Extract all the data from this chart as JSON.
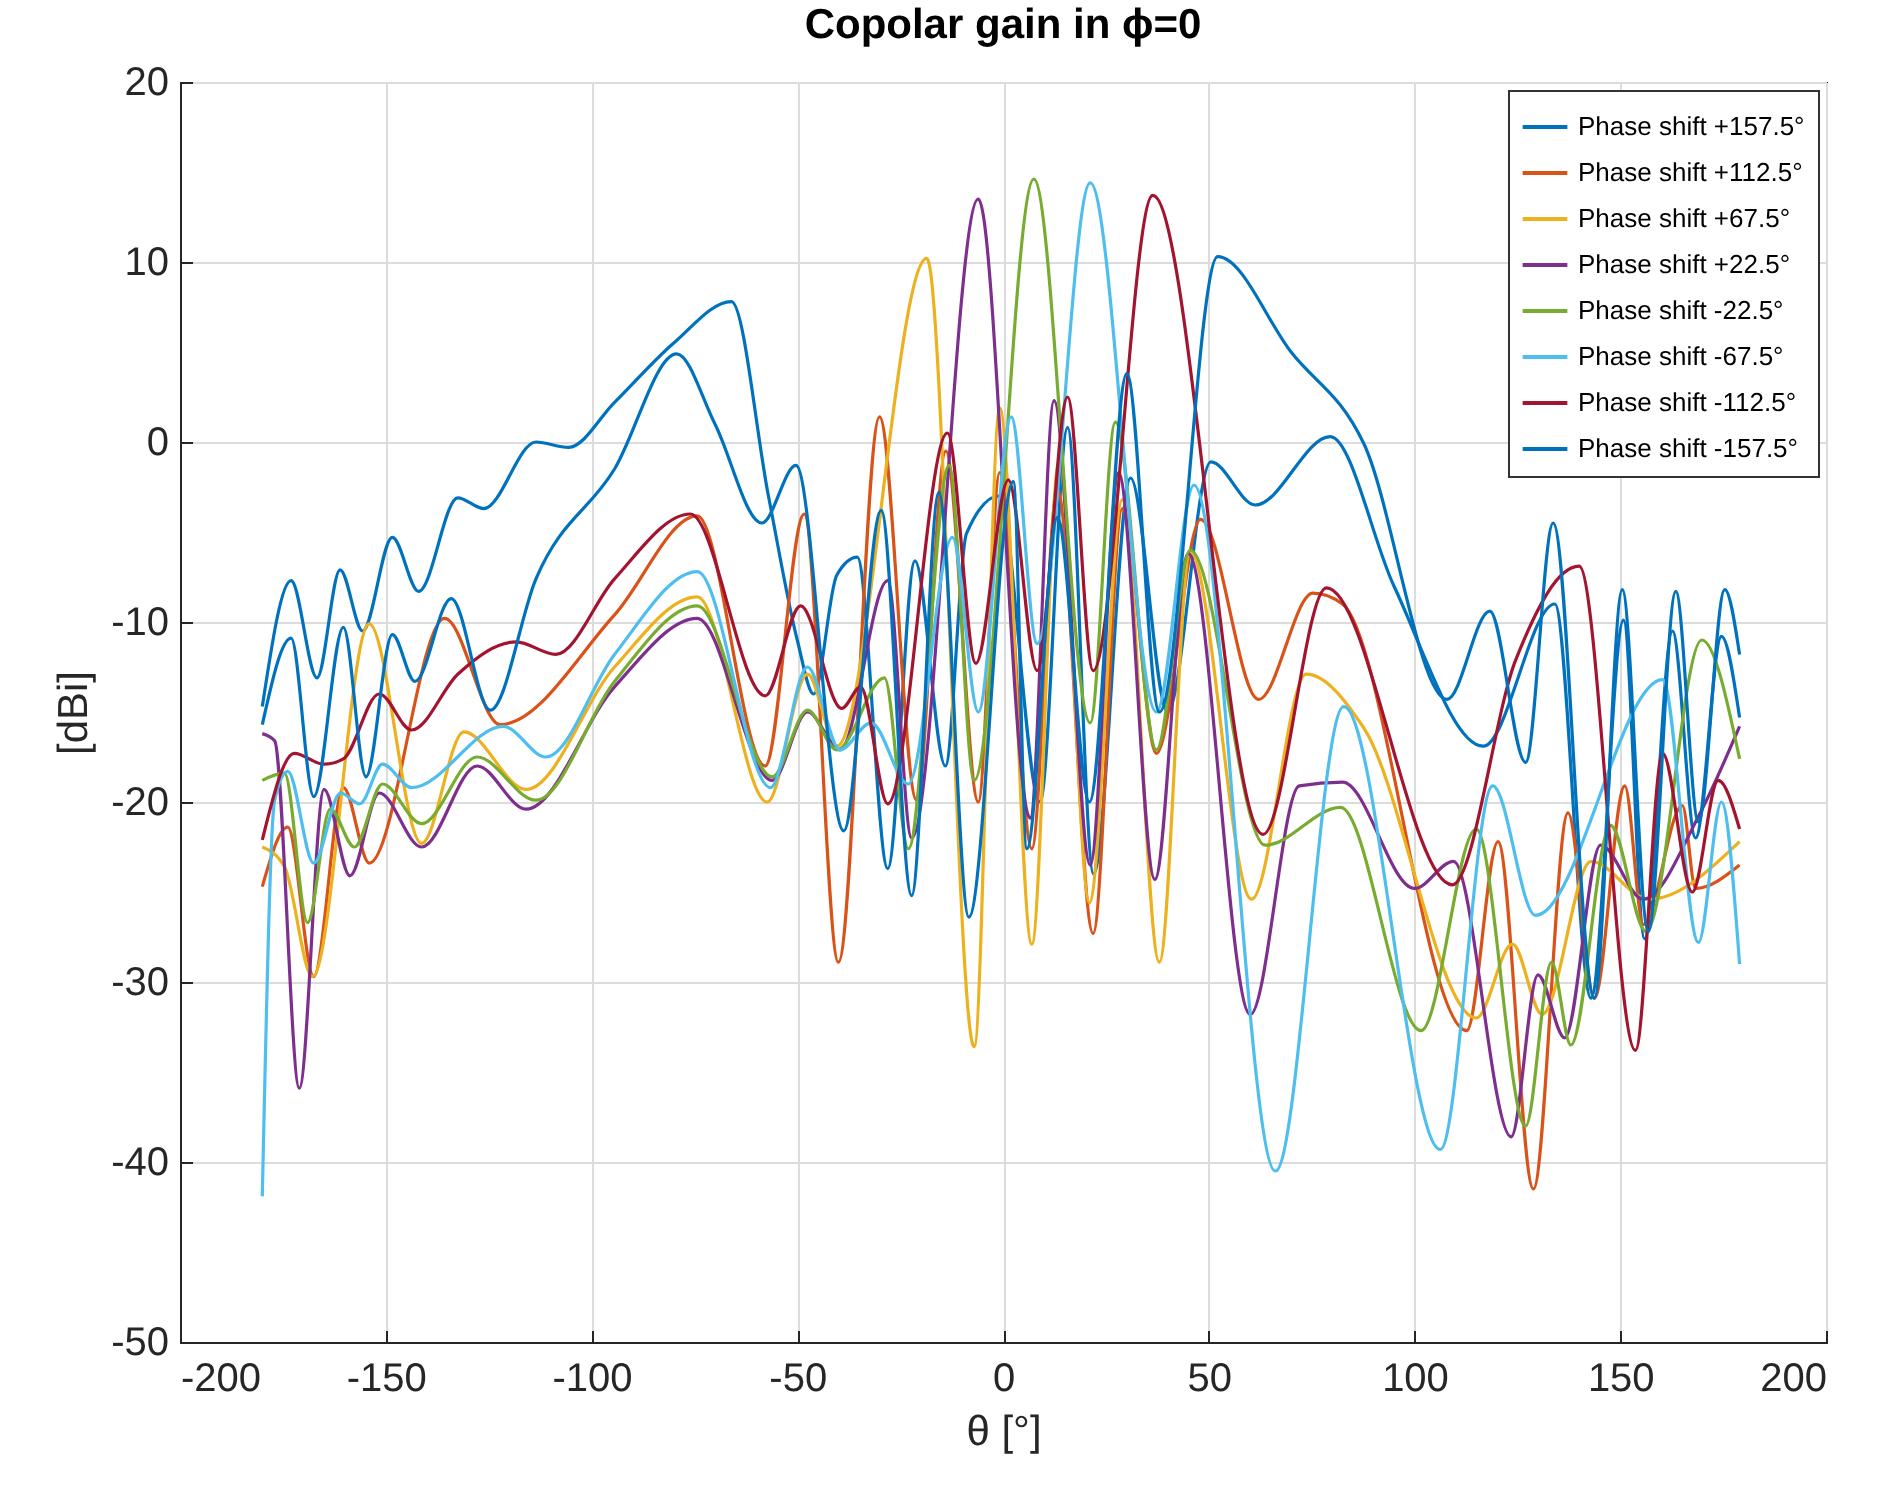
{
  "chart_data": {
    "type": "line",
    "title": "Copolar gain in ϕ=0",
    "xlabel": "θ [°]",
    "ylabel": "[dBi]",
    "xlim": [
      -200,
      200
    ],
    "ylim": [
      -50,
      20
    ],
    "xticks": [
      -200,
      -150,
      -100,
      -50,
      0,
      50,
      100,
      150,
      200
    ],
    "yticks": [
      -50,
      -40,
      -30,
      -20,
      -10,
      0,
      10,
      20
    ],
    "grid": true,
    "legend": "top right",
    "series": [
      {
        "name": "Phase shift +157.5°",
        "color": "#0072bd",
        "x": [
          -180,
          -173,
          -166.7,
          -161.1,
          -155.6,
          -148.4,
          -142,
          -132.5,
          -126.2,
          -113.5,
          -105.6,
          -94.4,
          -80,
          -66,
          -57,
          -50,
          -46,
          -40.4,
          -35.4,
          -28,
          -21.4,
          -14,
          -8.9,
          -1,
          9,
          15.7,
          22,
          31,
          40,
          50.5,
          61.3,
          79.5,
          95,
          116.7,
          134.1,
          142.9,
          150.8,
          155.9,
          162.7,
          168.3,
          174.6,
          179
        ],
        "values": [
          -14.7,
          -7.7,
          -13.1,
          -7.1,
          -10.5,
          -5.3,
          -8.3,
          -3.1,
          -3.7,
          0,
          -0.3,
          2.2,
          5.5,
          7.8,
          -3,
          -11,
          -14,
          -7.4,
          -6.4,
          -23.7,
          -6.6,
          -18,
          -5.1,
          -3,
          -20,
          0.8,
          -24,
          -2,
          -15,
          -1.1,
          -3.5,
          0.3,
          -8,
          -16.9,
          -9,
          -30.9,
          -9.9,
          -27.6,
          -10.5,
          -22,
          -10.8,
          -15.3
        ]
      },
      {
        "name": "Phase shift +112.5°",
        "color": "#d95319",
        "x": [
          -180,
          -173.8,
          -167.5,
          -160.3,
          -154,
          -135.7,
          -122.2,
          -94.4,
          -74.3,
          -57.8,
          -48.3,
          -40,
          -30,
          -21,
          -13.9,
          -6,
          -0.8,
          7,
          13.2,
          21.9,
          29,
          37.3,
          48,
          62.1,
          75.3,
          82.5,
          112.7,
          120.3,
          128.9,
          137.3,
          143.7,
          151.1,
          155.6,
          165.1,
          168.3,
          179
        ],
        "values": [
          -24.7,
          -21.4,
          -29.7,
          -19.2,
          -23.4,
          -9.8,
          -15.7,
          -9.6,
          -4.1,
          -18,
          -4,
          -28.9,
          1.4,
          -19.9,
          -0.5,
          -20,
          -1.7,
          -22.6,
          -2.6,
          -27.3,
          -3.7,
          -17.3,
          -4.3,
          -14.3,
          -8.4,
          -9,
          -32.7,
          -22.2,
          -41.5,
          -20.6,
          -30.9,
          -19.1,
          -26.8,
          -20.2,
          -24.8,
          -23.5
        ]
      },
      {
        "name": "Phase shift +67.5°",
        "color": "#edb120",
        "x": [
          -180,
          -174.6,
          -167.8,
          -154,
          -141.3,
          -131,
          -115.9,
          -94.4,
          -74.3,
          -57.3,
          -47.5,
          -40.4,
          -18.5,
          -7,
          -0.8,
          7,
          13.6,
          21,
          29,
          38,
          45.5,
          60.4,
          73.7,
          87.7,
          115,
          123.8,
          131,
          142.9,
          157,
          179
        ],
        "values": [
          -22.5,
          -23.6,
          -29.7,
          -10.1,
          -22.3,
          -16.1,
          -19.3,
          -12.5,
          -8.6,
          -20,
          -12.9,
          -16.9,
          10.2,
          -33.6,
          1.9,
          -27.9,
          -1.1,
          -25.6,
          -3.2,
          -28.9,
          -6.1,
          -25.4,
          -12.9,
          -15.9,
          -32,
          -27.9,
          -31.8,
          -23.3,
          -25.4,
          -22.2
        ]
      },
      {
        "name": "Phase shift +22.5°",
        "color": "#7e2f8e",
        "x": [
          -180,
          -177,
          -171,
          -165,
          -158.7,
          -151.6,
          -141.3,
          -127.8,
          -115.9,
          -94.4,
          -74.3,
          -56.1,
          -47.5,
          -39.6,
          -28,
          -22.2,
          -6,
          6.6,
          12.4,
          21.2,
          28.1,
          36.9,
          45,
          60.1,
          72,
          82.5,
          100,
          109.5,
          123.5,
          130,
          136.5,
          145.2,
          155.6,
          169,
          179
        ],
        "values": [
          -16.2,
          -16.6,
          -35.9,
          -19.3,
          -24.1,
          -19.5,
          -22.5,
          -18,
          -20.4,
          -13.6,
          -9.8,
          -18.8,
          -15,
          -17.1,
          -7.7,
          -22,
          13.5,
          -20.9,
          2.3,
          -23.5,
          -1.7,
          -24.3,
          -6.2,
          -31.8,
          -19.1,
          -18.9,
          -24.8,
          -23.3,
          -38.6,
          -29.6,
          -33.1,
          -22.4,
          -25.4,
          -20.8,
          -15.8
        ]
      },
      {
        "name": "Phase shift -22.5°",
        "color": "#77ac30",
        "x": [
          -180,
          -174.6,
          -169,
          -163.5,
          -157.6,
          -150.8,
          -141.3,
          -127.8,
          -113.5,
          -94.4,
          -74.3,
          -56.1,
          -47.5,
          -40.4,
          -28.8,
          -23,
          -13.1,
          -7,
          7.5,
          21.2,
          27.3,
          37.3,
          45.5,
          63.7,
          82,
          101.6,
          115,
          127,
          133.3,
          138,
          147.6,
          156.3,
          169.8,
          179
        ],
        "values": [
          -18.8,
          -18.4,
          -26.7,
          -20.4,
          -22.5,
          -19,
          -21.2,
          -17.5,
          -19.9,
          -13.3,
          -9.1,
          -18.6,
          -14.9,
          -17.1,
          -13.1,
          -22.6,
          -1.3,
          -18.8,
          14.6,
          -15.6,
          1.1,
          -17.1,
          -6,
          -22.4,
          -20.3,
          -32.7,
          -21.5,
          -38,
          -28.9,
          -33.5,
          -21.3,
          -27.2,
          -11,
          -17.6
        ]
      },
      {
        "name": "Phase shift -67.5°",
        "color": "#4dbeee",
        "x": [
          -180,
          -177,
          -173.8,
          -167.5,
          -161,
          -156.3,
          -150.8,
          -143.7,
          -121.4,
          -111.1,
          -94.4,
          -74.3,
          -56.5,
          -47.5,
          -39.6,
          -32.1,
          -23,
          -12.3,
          -6,
          2,
          8.3,
          21.2,
          37.3,
          46.4,
          66.2,
          82.8,
          106.3,
          119,
          129.4,
          160.3,
          169,
          174.6,
          179
        ],
        "values": [
          -41.9,
          -19.9,
          -18.3,
          -23.4,
          -19.5,
          -20.1,
          -17.9,
          -19.2,
          -15.8,
          -17.5,
          -11.8,
          -7.2,
          -19.2,
          -12.5,
          -17.1,
          -15.6,
          -19,
          -5.3,
          -15,
          1.4,
          -11.2,
          14.4,
          -15,
          -2.4,
          -40.5,
          -14.7,
          -39.3,
          -19.1,
          -26.3,
          -13.2,
          -27.8,
          -20,
          -29
        ]
      },
      {
        "name": "Phase shift -112.5°",
        "color": "#a2142f",
        "x": [
          -180,
          -172.2,
          -165,
          -160.3,
          -151.6,
          -143.7,
          -132.5,
          -118.3,
          -108.7,
          -94.4,
          -76,
          -57.8,
          -49.2,
          -39.2,
          -34.6,
          -28,
          -13.5,
          -6.6,
          1.3,
          8.3,
          15.7,
          21.9,
          36.4,
          63.2,
          78.6,
          109.2,
          124.6,
          140,
          153.7,
          160.3,
          167.5,
          173.8,
          179
        ],
        "values": [
          -22.1,
          -17.3,
          -17.9,
          -17.6,
          -14,
          -16,
          -12.9,
          -11.1,
          -11.8,
          -7.6,
          -4,
          -14.1,
          -9.1,
          -14.8,
          -13.6,
          -20.1,
          0.5,
          -12.3,
          -2.1,
          -12.7,
          2.5,
          -12.7,
          13.7,
          -21.8,
          -8.1,
          -24.6,
          -12.1,
          -6.9,
          -33.8,
          -17.3,
          -25,
          -18.8,
          -21.5
        ]
      },
      {
        "name": "Phase shift -157.5°",
        "color": "#0072bd",
        "x": [
          -180,
          -173,
          -167.5,
          -160.3,
          -154.8,
          -148.4,
          -142.9,
          -134.1,
          -124.6,
          -113.5,
          -94.4,
          -79.3,
          -70,
          -58.6,
          -50.3,
          -38.7,
          -29.6,
          -22.2,
          -15.6,
          -8.3,
          2.5,
          5.8,
          13.2,
          21,
          30.1,
          38,
          52.2,
          70,
          87.7,
          107.9,
          118.3,
          127,
          133.7,
          143.7,
          150.5,
          156.8,
          163.5,
          169,
          175.4,
          179
        ],
        "values": [
          -15.7,
          -10.9,
          -19.7,
          -10.3,
          -18.6,
          -10.7,
          -13.3,
          -8.7,
          -14.9,
          -7.6,
          -1.5,
          4.9,
          1,
          -4.5,
          -1.3,
          -21.6,
          -3.8,
          -25.2,
          -2.8,
          -26.4,
          -2.2,
          -22.6,
          -4.2,
          -20,
          3.8,
          -15,
          10.3,
          5,
          -0.1,
          -14.3,
          -9.4,
          -17.8,
          -4.5,
          -30.9,
          -8.2,
          -27.2,
          -8.3,
          -21.1,
          -8.2,
          -11.8
        ]
      }
    ]
  }
}
